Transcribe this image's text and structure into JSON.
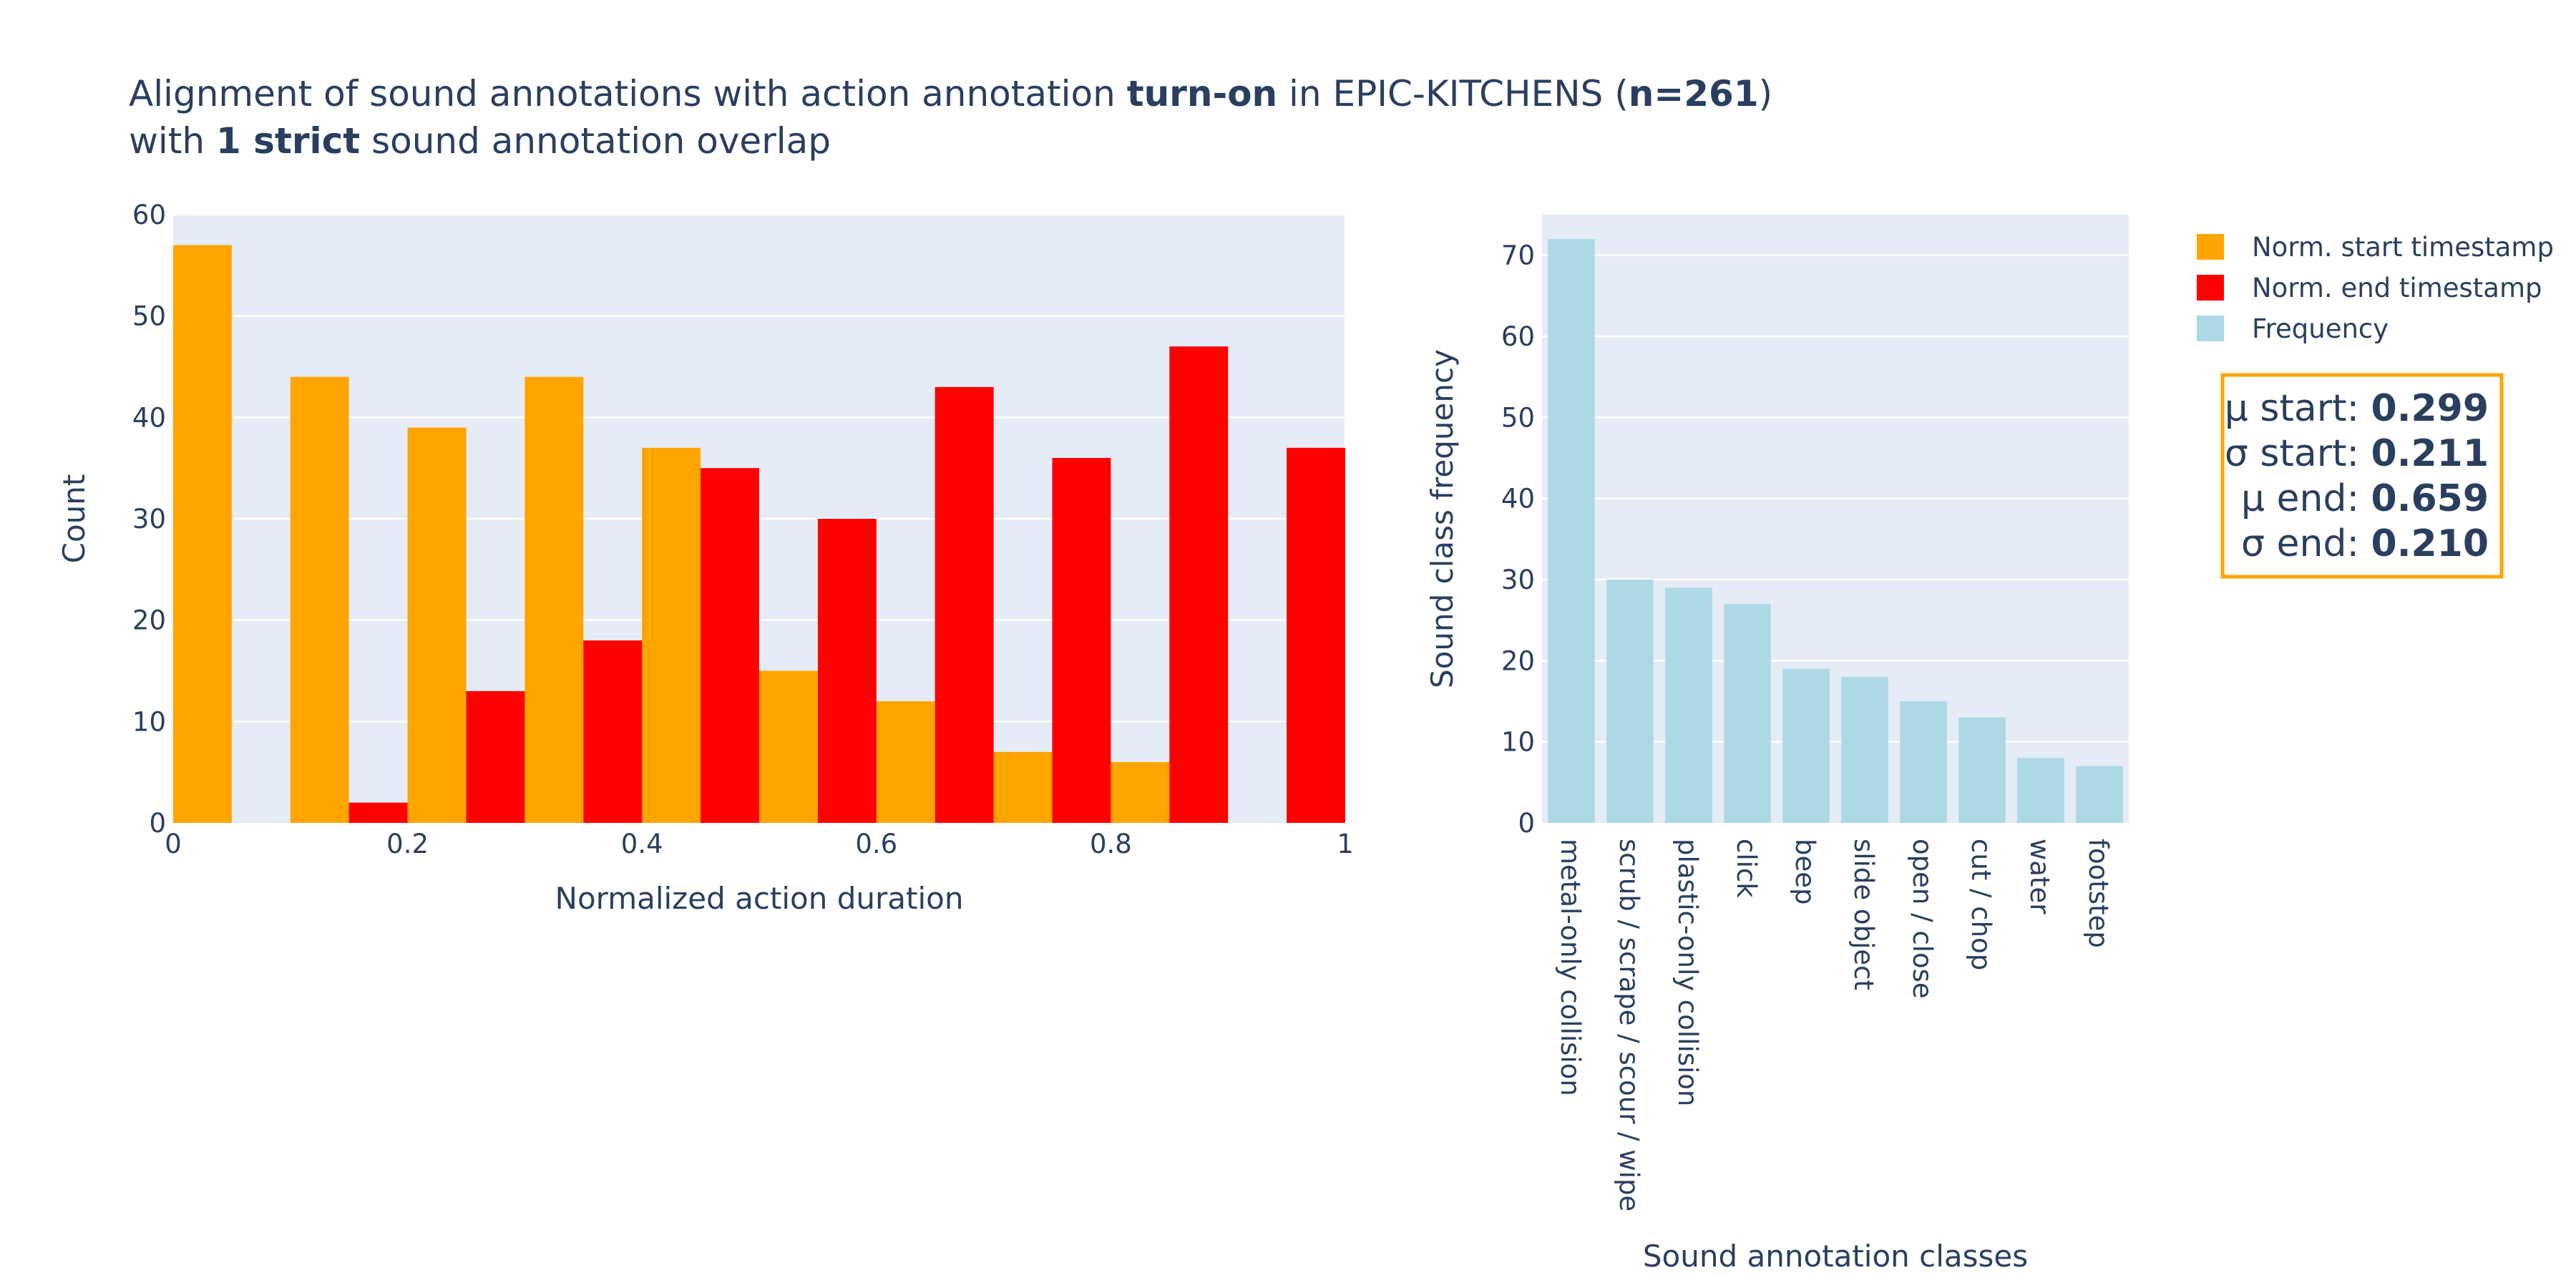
{
  "title": {
    "line1": [
      {
        "text": "Alignment of sound annotations with action annotation ",
        "bold": false
      },
      {
        "text": "turn-on",
        "bold": true
      },
      {
        "text": " in EPIC-KITCHENS (",
        "bold": false
      },
      {
        "text": "n=261",
        "bold": true
      },
      {
        "text": ")",
        "bold": false
      }
    ],
    "line2": [
      {
        "text": "with ",
        "bold": false
      },
      {
        "text": "1 strict",
        "bold": true
      },
      {
        "text": " sound annotation overlap",
        "bold": false
      }
    ]
  },
  "colors": {
    "plot_bg": "#e5ecf6",
    "grid": "#ffffff",
    "text": "#2a3f5f",
    "start": "#ffa500",
    "end": "#ff0000",
    "frequency": "#add8e6",
    "stats_border": "#ffa500"
  },
  "legend": {
    "placement": "top-right",
    "items": [
      {
        "label": "Norm. start timestamp",
        "color": "#ffa500"
      },
      {
        "label": "Norm. end timestamp",
        "color": "#ff0000"
      },
      {
        "label": "Frequency",
        "color": "#add8e6"
      }
    ]
  },
  "stats_box": {
    "lines": [
      {
        "label": "μ start: ",
        "value": "0.299"
      },
      {
        "label": "σ start: ",
        "value": "0.211"
      },
      {
        "label": "μ end: ",
        "value": "0.659"
      },
      {
        "label": "σ end: ",
        "value": "0.210"
      }
    ]
  },
  "chart_data": [
    {
      "type": "bar",
      "xlabel": "Normalized action duration",
      "ylabel": "Count",
      "xlim": [
        0,
        1
      ],
      "ylim": [
        0,
        60
      ],
      "xticks": [
        0,
        0.2,
        0.4,
        0.6,
        0.8,
        1
      ],
      "xtick_labels": [
        "0",
        "0.2",
        "0.4",
        "0.6",
        "0.8",
        "1"
      ],
      "yticks": [
        0,
        10,
        20,
        30,
        40,
        50,
        60
      ],
      "grid": true,
      "bin_width": 0.1,
      "bin_starts": [
        0,
        0.1,
        0.2,
        0.3,
        0.4,
        0.5,
        0.6,
        0.7,
        0.8,
        0.9
      ],
      "series": [
        {
          "name": "Norm. start timestamp",
          "values": [
            57,
            44,
            39,
            44,
            37,
            15,
            12,
            7,
            6,
            0
          ]
        },
        {
          "name": "Norm. end timestamp",
          "values": [
            0,
            2,
            13,
            18,
            35,
            30,
            43,
            36,
            47,
            37
          ]
        }
      ]
    },
    {
      "type": "bar",
      "xlabel": "Sound annotation classes",
      "ylabel": "Sound class frequency",
      "ylim": [
        0,
        75
      ],
      "yticks": [
        0,
        10,
        20,
        30,
        40,
        50,
        60,
        70
      ],
      "grid": true,
      "categories": [
        "metal-only collision",
        "scrub / scrape / scour / wipe",
        "plastic-only collision",
        "click",
        "beep",
        "slide object",
        "open / close",
        "cut / chop",
        "water",
        "footstep"
      ],
      "series": [
        {
          "name": "Frequency",
          "values": [
            72,
            30,
            29,
            27,
            19,
            18,
            15,
            13,
            8,
            7
          ]
        }
      ]
    }
  ]
}
